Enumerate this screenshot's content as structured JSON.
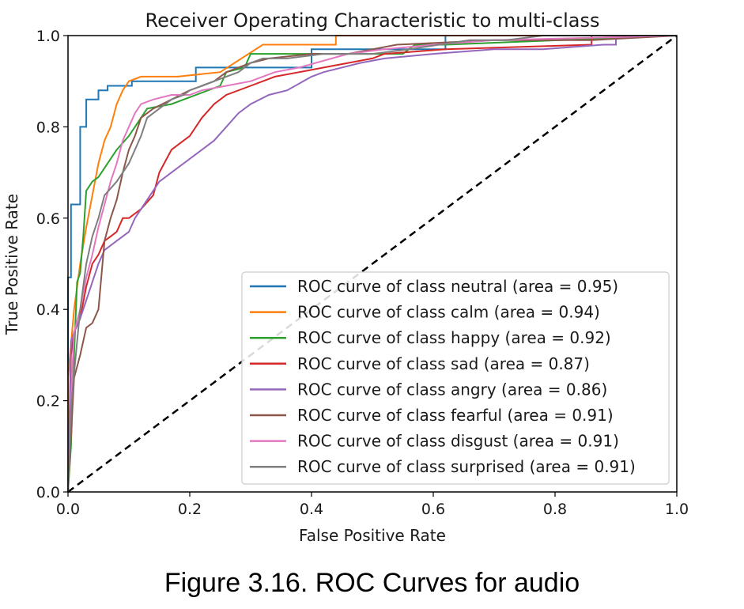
{
  "caption": "Figure 3.16. ROC Curves for audio",
  "chart_data": {
    "type": "line",
    "title": "Receiver Operating Characteristic to multi-class",
    "xlabel": "False Positive Rate",
    "ylabel": "True Positive Rate",
    "xlim": [
      0.0,
      1.0
    ],
    "ylim": [
      0.0,
      1.0
    ],
    "xticks": [
      "0.0",
      "0.2",
      "0.4",
      "0.6",
      "0.8",
      "1.0"
    ],
    "yticks": [
      "0.0",
      "0.2",
      "0.4",
      "0.6",
      "0.8",
      "1.0"
    ],
    "grid": false,
    "legend_position": "lower-right",
    "diagonal": {
      "x": [
        0,
        1
      ],
      "y": [
        0,
        1
      ],
      "style": "dashed",
      "color": "#000000"
    },
    "series": [
      {
        "name": "ROC curve of class neutral (area = 0.95)",
        "color": "#1f77b4",
        "x": [
          0,
          0,
          0.005,
          0.005,
          0.02,
          0.02,
          0.03,
          0.03,
          0.05,
          0.05,
          0.065,
          0.065,
          0.105,
          0.105,
          0.21,
          0.21,
          0.4,
          0.4,
          0.62,
          0.62,
          1.0
        ],
        "y": [
          0,
          0.47,
          0.47,
          0.63,
          0.63,
          0.8,
          0.8,
          0.86,
          0.86,
          0.88,
          0.88,
          0.89,
          0.89,
          0.9,
          0.9,
          0.93,
          0.93,
          0.97,
          0.97,
          1.0,
          1.0
        ]
      },
      {
        "name": "ROC curve of class calm (area = 0.94)",
        "color": "#ff7f0e",
        "x": [
          0,
          0,
          0.01,
          0.02,
          0.03,
          0.04,
          0.05,
          0.06,
          0.07,
          0.08,
          0.09,
          0.1,
          0.12,
          0.18,
          0.25,
          0.32,
          0.44,
          0.44,
          0.74,
          1.0
        ],
        "y": [
          0,
          0.25,
          0.4,
          0.5,
          0.58,
          0.65,
          0.72,
          0.77,
          0.8,
          0.85,
          0.88,
          0.9,
          0.91,
          0.91,
          0.92,
          0.98,
          0.98,
          1.0,
          1.0,
          1.0
        ]
      },
      {
        "name": "ROC curve of class happy (area = 0.92)",
        "color": "#2ca02c",
        "x": [
          0,
          0.005,
          0.01,
          0.015,
          0.02,
          0.025,
          0.03,
          0.04,
          0.05,
          0.065,
          0.08,
          0.1,
          0.13,
          0.17,
          0.25,
          0.26,
          0.29,
          0.3,
          0.34,
          0.4,
          0.55,
          0.57,
          0.62,
          1.0
        ],
        "y": [
          0,
          0.1,
          0.3,
          0.46,
          0.48,
          0.56,
          0.66,
          0.68,
          0.69,
          0.72,
          0.75,
          0.78,
          0.84,
          0.85,
          0.89,
          0.92,
          0.93,
          0.96,
          0.96,
          0.96,
          0.96,
          0.98,
          0.98,
          1.0
        ]
      },
      {
        "name": "ROC curve of class sad (area = 0.87)",
        "color": "#d62728",
        "x": [
          0,
          0.005,
          0.01,
          0.02,
          0.03,
          0.04,
          0.05,
          0.06,
          0.07,
          0.08,
          0.09,
          0.1,
          0.12,
          0.14,
          0.15,
          0.17,
          0.19,
          0.2,
          0.22,
          0.24,
          0.26,
          0.3,
          0.34,
          0.38,
          0.42,
          0.5,
          0.52,
          0.62,
          0.86,
          0.86,
          1.0
        ],
        "y": [
          0,
          0.3,
          0.35,
          0.38,
          0.45,
          0.5,
          0.52,
          0.55,
          0.56,
          0.57,
          0.6,
          0.6,
          0.62,
          0.65,
          0.7,
          0.75,
          0.77,
          0.78,
          0.82,
          0.85,
          0.87,
          0.89,
          0.91,
          0.92,
          0.93,
          0.95,
          0.96,
          0.97,
          0.98,
          1.0,
          1.0
        ]
      },
      {
        "name": "ROC curve of class angry (area = 0.86)",
        "color": "#9467bd",
        "x": [
          0,
          0.005,
          0.01,
          0.02,
          0.03,
          0.04,
          0.05,
          0.06,
          0.08,
          0.1,
          0.11,
          0.12,
          0.13,
          0.14,
          0.15,
          0.16,
          0.17,
          0.18,
          0.2,
          0.22,
          0.24,
          0.26,
          0.28,
          0.3,
          0.33,
          0.36,
          0.4,
          0.42,
          0.48,
          0.52,
          0.6,
          0.7,
          0.78,
          0.88,
          0.9,
          0.9,
          1.0
        ],
        "y": [
          0,
          0.33,
          0.35,
          0.38,
          0.42,
          0.46,
          0.5,
          0.53,
          0.55,
          0.57,
          0.6,
          0.62,
          0.64,
          0.66,
          0.68,
          0.69,
          0.7,
          0.71,
          0.73,
          0.75,
          0.77,
          0.8,
          0.83,
          0.85,
          0.87,
          0.88,
          0.91,
          0.92,
          0.94,
          0.95,
          0.96,
          0.97,
          0.97,
          0.98,
          0.98,
          1.0,
          1.0
        ]
      },
      {
        "name": "ROC curve of class fearful (area = 0.91)",
        "color": "#8c564b",
        "x": [
          0,
          0.01,
          0.02,
          0.03,
          0.04,
          0.05,
          0.06,
          0.07,
          0.08,
          0.09,
          0.1,
          0.11,
          0.12,
          0.14,
          0.17,
          0.2,
          0.22,
          0.24,
          0.26,
          0.3,
          0.33,
          0.4,
          0.46,
          0.5,
          0.54,
          0.7,
          0.86,
          1.0
        ],
        "y": [
          0,
          0.25,
          0.3,
          0.36,
          0.37,
          0.4,
          0.55,
          0.6,
          0.64,
          0.7,
          0.75,
          0.78,
          0.82,
          0.84,
          0.86,
          0.88,
          0.89,
          0.9,
          0.92,
          0.94,
          0.95,
          0.96,
          0.96,
          0.97,
          0.98,
          0.99,
          0.99,
          1.0
        ]
      },
      {
        "name": "ROC curve of class disgust (area = 0.91)",
        "color": "#e377c2",
        "x": [
          0,
          0.005,
          0.01,
          0.02,
          0.03,
          0.04,
          0.05,
          0.06,
          0.07,
          0.08,
          0.09,
          0.1,
          0.11,
          0.12,
          0.14,
          0.17,
          0.2,
          0.22,
          0.26,
          0.3,
          0.34,
          0.38,
          0.46,
          0.52,
          0.6,
          0.7,
          1.0
        ],
        "y": [
          0,
          0.2,
          0.35,
          0.4,
          0.47,
          0.52,
          0.58,
          0.63,
          0.68,
          0.72,
          0.77,
          0.8,
          0.83,
          0.85,
          0.86,
          0.87,
          0.87,
          0.88,
          0.89,
          0.9,
          0.92,
          0.93,
          0.96,
          0.97,
          0.98,
          0.99,
          1.0
        ]
      },
      {
        "name": "ROC curve of class surprised (area = 0.91)",
        "color": "#7f7f7f",
        "x": [
          0,
          0.005,
          0.01,
          0.02,
          0.03,
          0.04,
          0.05,
          0.06,
          0.08,
          0.1,
          0.12,
          0.13,
          0.15,
          0.17,
          0.19,
          0.2,
          0.22,
          0.24,
          0.26,
          0.28,
          0.3,
          0.32,
          0.36,
          0.42,
          0.5,
          0.56,
          0.66,
          0.72,
          0.78,
          1.0
        ],
        "y": [
          0,
          0.18,
          0.26,
          0.4,
          0.5,
          0.56,
          0.6,
          0.65,
          0.68,
          0.72,
          0.78,
          0.82,
          0.84,
          0.86,
          0.87,
          0.88,
          0.89,
          0.9,
          0.91,
          0.92,
          0.94,
          0.95,
          0.95,
          0.96,
          0.96,
          0.97,
          0.99,
          0.99,
          1.0,
          1.0
        ]
      }
    ]
  }
}
